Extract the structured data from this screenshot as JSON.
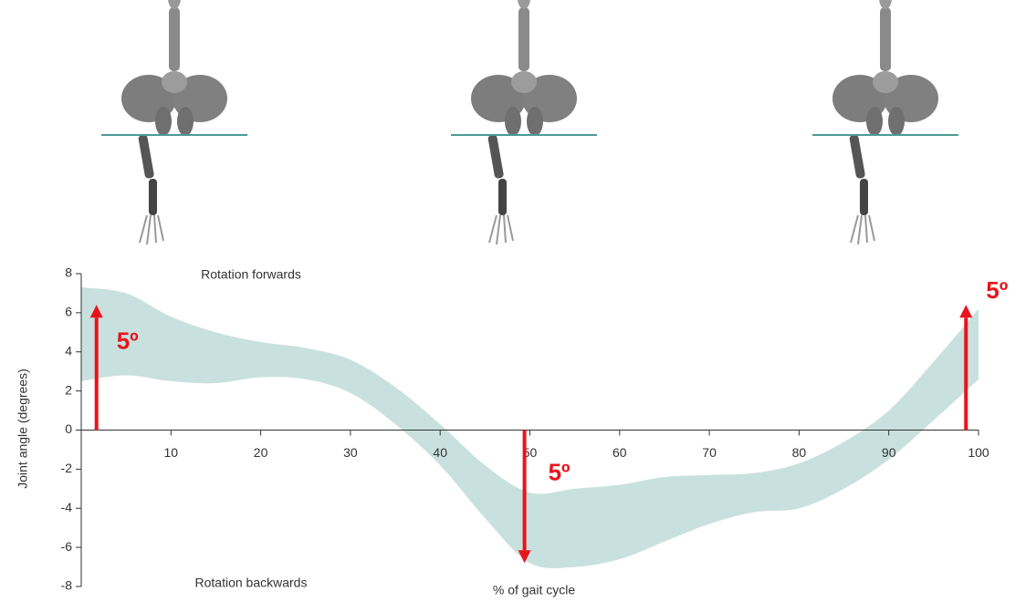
{
  "chart_data": {
    "type": "range",
    "y_label": "Joint angle (degrees)",
    "x_label": "% of gait cycle",
    "top_label": "Rotation forwards",
    "bottom_label": "Rotation backwards",
    "x": [
      0,
      5,
      10,
      15,
      20,
      25,
      30,
      35,
      40,
      45,
      50,
      55,
      60,
      65,
      70,
      75,
      80,
      85,
      90,
      95,
      100
    ],
    "upper": [
      7.3,
      7.0,
      5.8,
      5.0,
      4.5,
      4.2,
      3.6,
      2.2,
      0.3,
      -1.8,
      -3.2,
      -3.0,
      -2.8,
      -2.4,
      -2.3,
      -2.2,
      -1.7,
      -0.6,
      1.0,
      3.5,
      6.2
    ],
    "lower": [
      2.5,
      2.8,
      2.5,
      2.4,
      2.7,
      2.6,
      1.9,
      0.3,
      -1.8,
      -4.5,
      -6.8,
      -7.0,
      -6.6,
      -5.7,
      -4.8,
      -4.2,
      -4.0,
      -3.0,
      -1.5,
      0.5,
      2.6
    ],
    "color": "#c8e1de",
    "arrow_color": "#e8141b",
    "xlim": [
      0,
      100
    ],
    "ylim": [
      -8,
      8
    ],
    "xticks": [
      10,
      20,
      30,
      40,
      50,
      60,
      70,
      80,
      90,
      100
    ],
    "yticks": [
      -8,
      -6,
      -4,
      -2,
      0,
      2,
      4,
      6,
      8
    ],
    "arrows": [
      {
        "x": 1.7,
        "from": 0,
        "to": 6.4,
        "label": "5º"
      },
      {
        "x": 49.4,
        "from": 0,
        "to": -6.8,
        "label": "5º"
      },
      {
        "x": 98.6,
        "from": 0,
        "to": 6.4,
        "label": "5º"
      }
    ]
  }
}
